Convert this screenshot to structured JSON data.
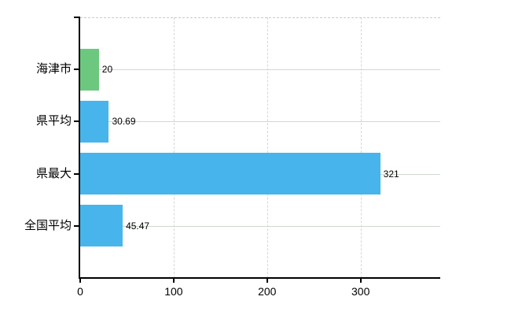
{
  "chart_data": {
    "type": "bar",
    "orientation": "horizontal",
    "title": "",
    "xlabel": "",
    "ylabel": "",
    "categories": [
      "海津市",
      "県平均",
      "県最大",
      "全国平均"
    ],
    "values": [
      20,
      30.69,
      321,
      45.47
    ],
    "value_labels": [
      "20",
      "30.69",
      "321",
      "45.47"
    ],
    "bar_colors": [
      "#6dc87f",
      "#47b5ec",
      "#47b5ec",
      "#47b5ec"
    ],
    "x_tick_labels": [
      "0",
      "100",
      "200",
      "300"
    ],
    "x_tick_values": [
      0,
      100,
      200,
      300
    ],
    "xlim": [
      0,
      385.2
    ],
    "grid": true,
    "legend_position": "none",
    "colors": {
      "background": "#ffffff",
      "axis": "#000000",
      "grid_horizontal": "#d0d8d0",
      "grid_vertical": "#d6d6d6",
      "plot_top_border": "#c9c9c9",
      "text": "#000000"
    }
  }
}
